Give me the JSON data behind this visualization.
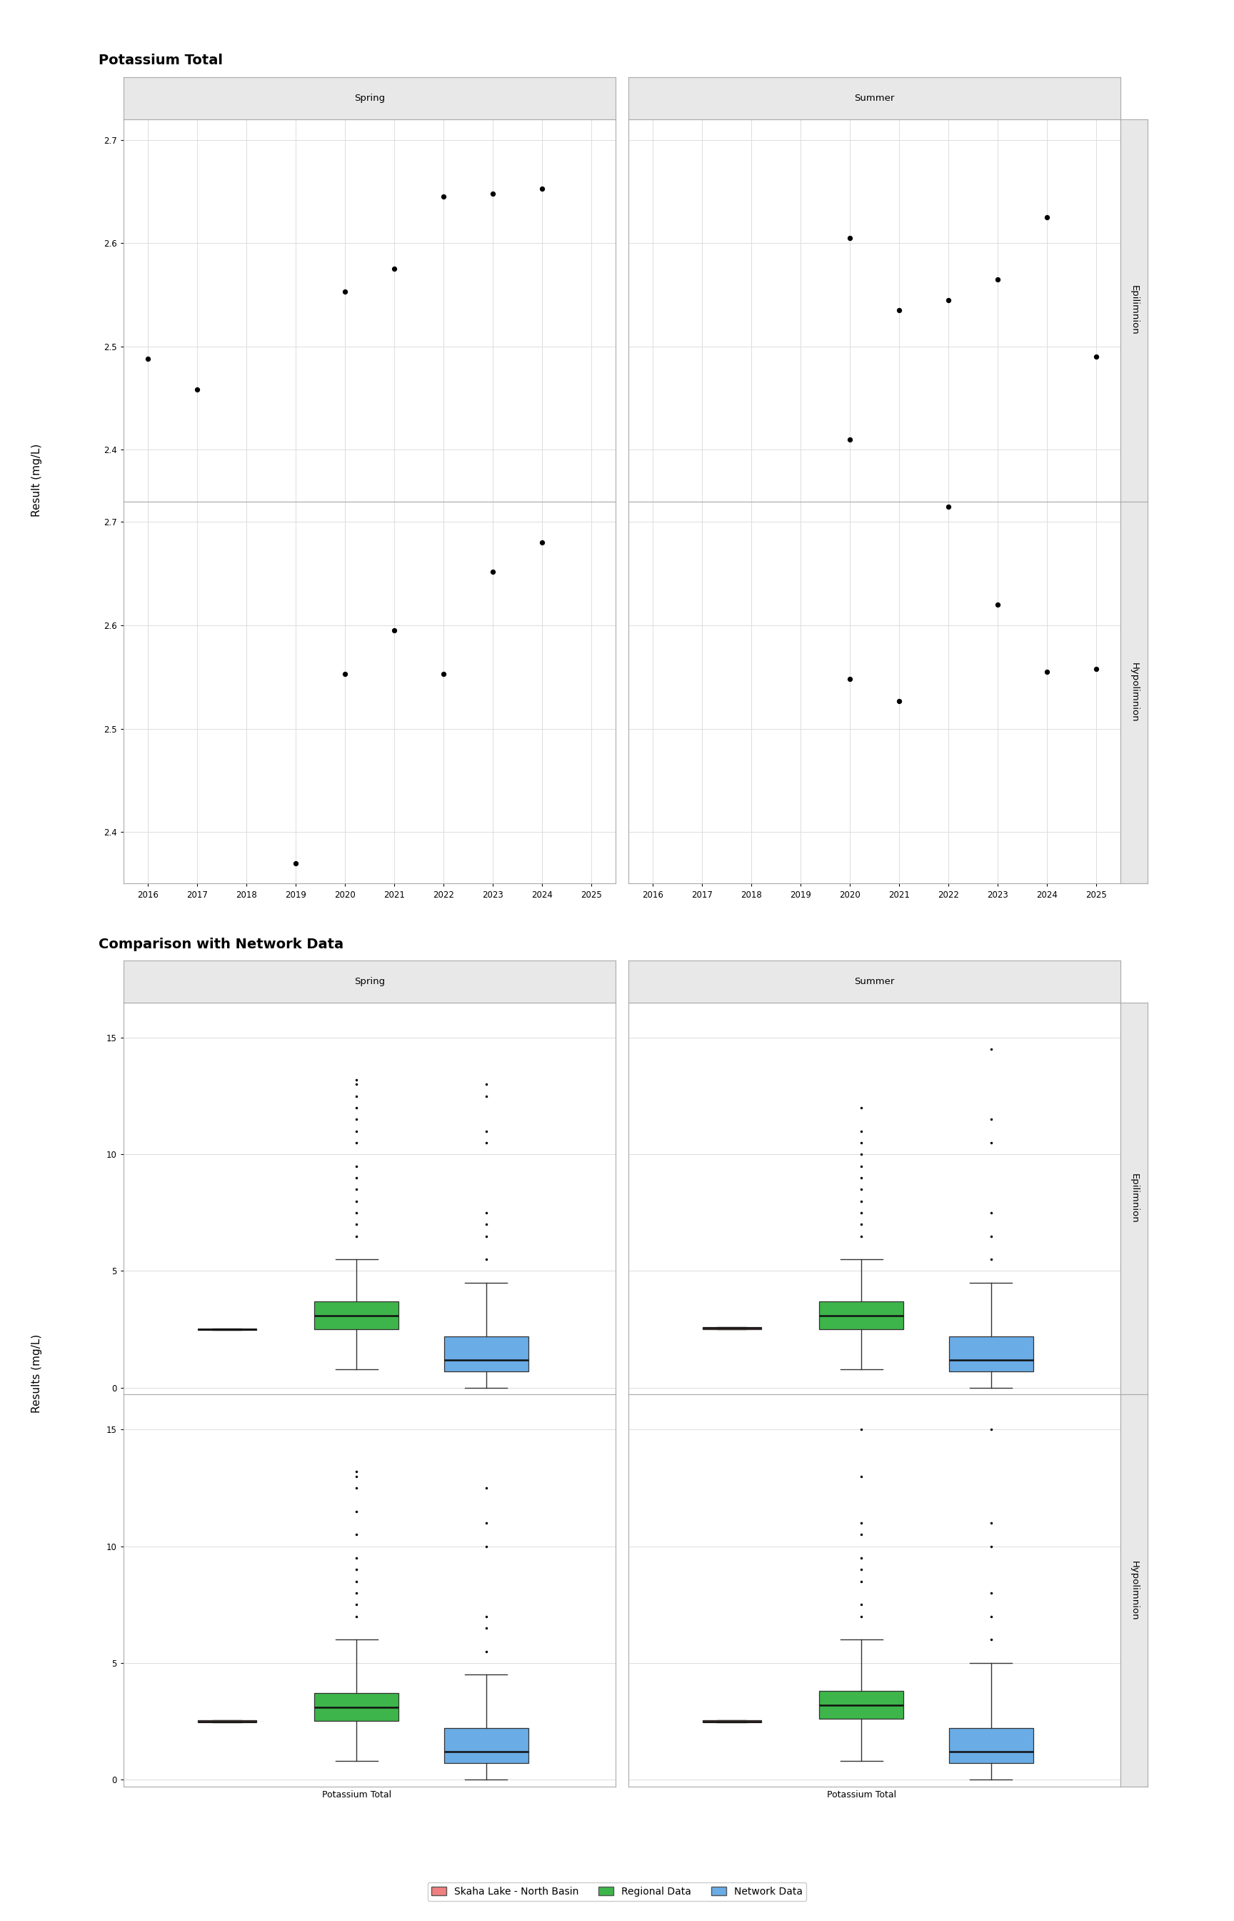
{
  "title1": "Potassium Total",
  "title2": "Comparison with Network Data",
  "ylabel_scatter": "Result (mg/L)",
  "ylabel_box": "Results (mg/L)",
  "xlabel_box": "Potassium Total",
  "scatter_spring_epi_x": [
    2016,
    2017,
    2020,
    2021,
    2022,
    2023,
    2024
  ],
  "scatter_spring_epi_y": [
    2.488,
    2.458,
    2.553,
    2.575,
    2.645,
    2.648,
    2.653
  ],
  "scatter_spring_hypo_x": [
    2019,
    2020,
    2021,
    2022,
    2023,
    2024
  ],
  "scatter_spring_hypo_y": [
    2.37,
    2.553,
    2.595,
    2.553,
    2.652,
    2.68
  ],
  "scatter_summer_epi_x": [
    2020,
    2020,
    2021,
    2022,
    2023,
    2024,
    2025
  ],
  "scatter_summer_epi_y": [
    2.605,
    2.41,
    2.535,
    2.545,
    2.565,
    2.625,
    2.49
  ],
  "scatter_summer_hypo_x": [
    2020,
    2021,
    2022,
    2023,
    2024,
    2025
  ],
  "scatter_summer_hypo_y": [
    2.548,
    2.527,
    2.715,
    2.62,
    2.555,
    2.558
  ],
  "scatter_xlim": [
    2015.5,
    2025.5
  ],
  "scatter_ylim_epi": [
    2.35,
    2.72
  ],
  "scatter_ylim_hypo": [
    2.35,
    2.72
  ],
  "scatter_xticks": [
    2016,
    2017,
    2018,
    2019,
    2020,
    2021,
    2022,
    2023,
    2024,
    2025
  ],
  "scatter_yticks": [
    2.4,
    2.5,
    2.6,
    2.7
  ],
  "box_skaha_spring_epi": {
    "q1": 2.46,
    "med": 2.49,
    "q3": 2.53,
    "whislo": 2.46,
    "whishi": 2.53,
    "fliers": []
  },
  "box_regional_spring_epi": {
    "q1": 2.5,
    "med": 3.1,
    "q3": 3.7,
    "whislo": 0.8,
    "whishi": 5.5,
    "fliers": [
      6.5,
      7.0,
      7.5,
      8.0,
      8.5,
      9.0,
      9.5,
      10.5,
      11.0,
      11.5,
      12.0,
      12.5,
      13.0,
      13.2
    ]
  },
  "box_network_spring_epi": {
    "q1": 0.7,
    "med": 1.2,
    "q3": 2.2,
    "whislo": 0.0,
    "whishi": 4.5,
    "fliers": [
      5.5,
      6.5,
      7.0,
      7.5,
      10.5,
      11.0,
      12.5,
      13.0
    ]
  },
  "box_skaha_summer_epi": {
    "q1": 2.5,
    "med": 2.55,
    "q3": 2.6,
    "whislo": 2.5,
    "whishi": 2.6,
    "fliers": []
  },
  "box_regional_summer_epi": {
    "q1": 2.5,
    "med": 3.1,
    "q3": 3.7,
    "whislo": 0.8,
    "whishi": 5.5,
    "fliers": [
      6.5,
      7.0,
      7.5,
      8.0,
      8.5,
      9.0,
      9.5,
      10.0,
      10.5,
      11.0,
      12.0
    ]
  },
  "box_network_summer_epi": {
    "q1": 0.7,
    "med": 1.2,
    "q3": 2.2,
    "whislo": 0.0,
    "whishi": 4.5,
    "fliers": [
      5.5,
      6.5,
      7.5,
      10.5,
      11.5,
      14.5
    ]
  },
  "box_skaha_spring_hypo": {
    "q1": 2.46,
    "med": 2.49,
    "q3": 2.55,
    "whislo": 2.46,
    "whishi": 2.55,
    "fliers": []
  },
  "box_regional_spring_hypo": {
    "q1": 2.5,
    "med": 3.1,
    "q3": 3.7,
    "whislo": 0.8,
    "whishi": 6.0,
    "fliers": [
      7.0,
      7.5,
      8.0,
      8.5,
      9.0,
      9.5,
      10.5,
      11.5,
      12.5,
      13.0,
      13.2
    ]
  },
  "box_network_spring_hypo": {
    "q1": 0.7,
    "med": 1.2,
    "q3": 2.2,
    "whislo": 0.0,
    "whishi": 4.5,
    "fliers": [
      5.5,
      6.5,
      7.0,
      10.0,
      11.0,
      12.5
    ]
  },
  "box_skaha_summer_hypo": {
    "q1": 2.46,
    "med": 2.49,
    "q3": 2.55,
    "whislo": 2.46,
    "whishi": 2.55,
    "fliers": []
  },
  "box_regional_summer_hypo": {
    "q1": 2.6,
    "med": 3.2,
    "q3": 3.8,
    "whislo": 0.8,
    "whishi": 6.0,
    "fliers": [
      7.0,
      7.5,
      8.5,
      9.0,
      9.5,
      10.5,
      11.0,
      13.0,
      15.0
    ]
  },
  "box_network_summer_hypo": {
    "q1": 0.7,
    "med": 1.2,
    "q3": 2.2,
    "whislo": 0.0,
    "whishi": 5.0,
    "fliers": [
      6.0,
      7.0,
      8.0,
      10.0,
      11.0,
      15.0
    ]
  },
  "color_skaha": "#f08080",
  "color_regional": "#3db54a",
  "color_network": "#6aace6",
  "color_panel_bg": "#e8e8e8",
  "color_plot_bg": "#ffffff",
  "color_grid": "#dddddd",
  "color_scatter": "#000000",
  "legend_labels": [
    "Skaha Lake - North Basin",
    "Regional Data",
    "Network Data"
  ],
  "strip_labels_col": [
    "Spring",
    "Summer"
  ],
  "strip_labels_row_scatter": [
    "Epilimnion",
    "Hypolimnion"
  ],
  "strip_labels_row_box": [
    "Epilimnion",
    "Hypolimnion"
  ]
}
